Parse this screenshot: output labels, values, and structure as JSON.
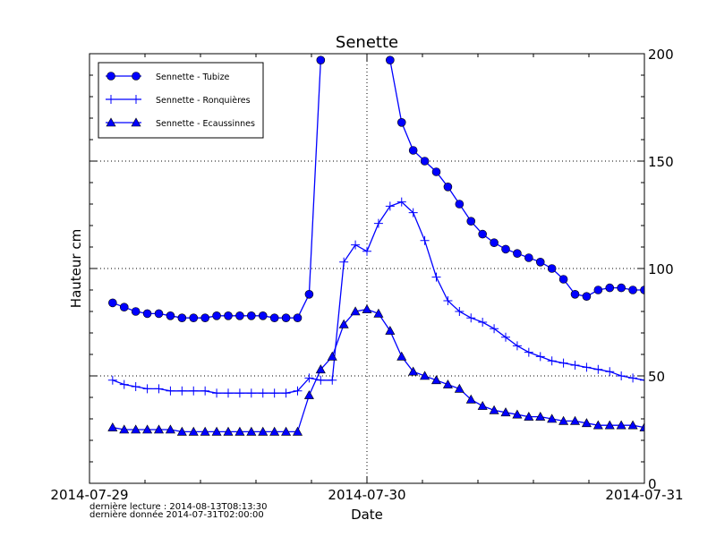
{
  "chart_data": {
    "type": "line",
    "title": "Senette",
    "xlabel": "Date",
    "ylabel": "Hauteur cm",
    "xlim": [
      "2014-07-29T00:00",
      "2014-07-31T00:00"
    ],
    "ylim": [
      0,
      200
    ],
    "xticks": [
      "2014-07-29",
      "2014-07-30",
      "2014-07-31"
    ],
    "yticks": [
      "0",
      "50",
      "100",
      "150",
      "200"
    ],
    "y_axis_side": "right",
    "grid": "dotted",
    "legend_placement": "top-left",
    "color": "#0000ff",
    "x": [
      "2014-07-29T02:00",
      "2014-07-29T03:00",
      "2014-07-29T04:00",
      "2014-07-29T05:00",
      "2014-07-29T06:00",
      "2014-07-29T07:00",
      "2014-07-29T08:00",
      "2014-07-29T09:00",
      "2014-07-29T10:00",
      "2014-07-29T11:00",
      "2014-07-29T12:00",
      "2014-07-29T13:00",
      "2014-07-29T14:00",
      "2014-07-29T15:00",
      "2014-07-29T16:00",
      "2014-07-29T17:00",
      "2014-07-29T18:00",
      "2014-07-29T19:00",
      "2014-07-29T20:00",
      "2014-07-29T21:00",
      "2014-07-29T22:00",
      "2014-07-29T23:00",
      "2014-07-30T00:00",
      "2014-07-30T01:00",
      "2014-07-30T02:00",
      "2014-07-30T03:00",
      "2014-07-30T04:00",
      "2014-07-30T05:00",
      "2014-07-30T06:00",
      "2014-07-30T07:00",
      "2014-07-30T08:00",
      "2014-07-30T09:00",
      "2014-07-30T10:00",
      "2014-07-30T11:00",
      "2014-07-30T12:00",
      "2014-07-30T13:00",
      "2014-07-30T14:00",
      "2014-07-30T15:00",
      "2014-07-30T16:00",
      "2014-07-30T17:00",
      "2014-07-30T18:00",
      "2014-07-30T19:00",
      "2014-07-30T20:00",
      "2014-07-30T21:00",
      "2014-07-30T22:00",
      "2014-07-30T23:00",
      "2014-07-31T00:00"
    ],
    "series": [
      {
        "name": "Sennette - Tubize",
        "marker": "circle",
        "values": [
          84,
          82,
          80,
          79,
          79,
          78,
          77,
          77,
          77,
          78,
          78,
          78,
          78,
          78,
          77,
          77,
          77,
          88,
          197,
          null,
          null,
          null,
          null,
          null,
          197,
          168,
          155,
          150,
          145,
          138,
          130,
          122,
          116,
          112,
          109,
          107,
          105,
          103,
          100,
          95,
          88,
          87,
          90,
          91,
          91,
          90,
          90
        ]
      },
      {
        "name": "Sennette - Ronquières",
        "marker": "plus",
        "values": [
          48,
          46,
          45,
          44,
          44,
          43,
          43,
          43,
          43,
          42,
          42,
          42,
          42,
          42,
          42,
          42,
          43,
          49,
          48,
          48,
          103,
          111,
          108,
          121,
          129,
          131,
          126,
          113,
          96,
          85,
          80,
          77,
          75,
          72,
          68,
          64,
          61,
          59,
          57,
          56,
          55,
          54,
          53,
          52,
          50,
          49,
          48
        ]
      },
      {
        "name": "Sennette - Ecaussinnes",
        "marker": "triangle",
        "values": [
          26,
          25,
          25,
          25,
          25,
          25,
          24,
          24,
          24,
          24,
          24,
          24,
          24,
          24,
          24,
          24,
          24,
          41,
          53,
          59,
          74,
          80,
          81,
          79,
          71,
          59,
          52,
          50,
          48,
          46,
          44,
          39,
          36,
          34,
          33,
          32,
          31,
          31,
          30,
          29,
          29,
          28,
          27,
          27,
          27,
          27,
          26
        ]
      }
    ]
  },
  "footer": {
    "last_read": "dernière lecture : 2014-08-13T08:13:30",
    "last_data": "dernière donnée  2014-07-31T02:00:00"
  }
}
